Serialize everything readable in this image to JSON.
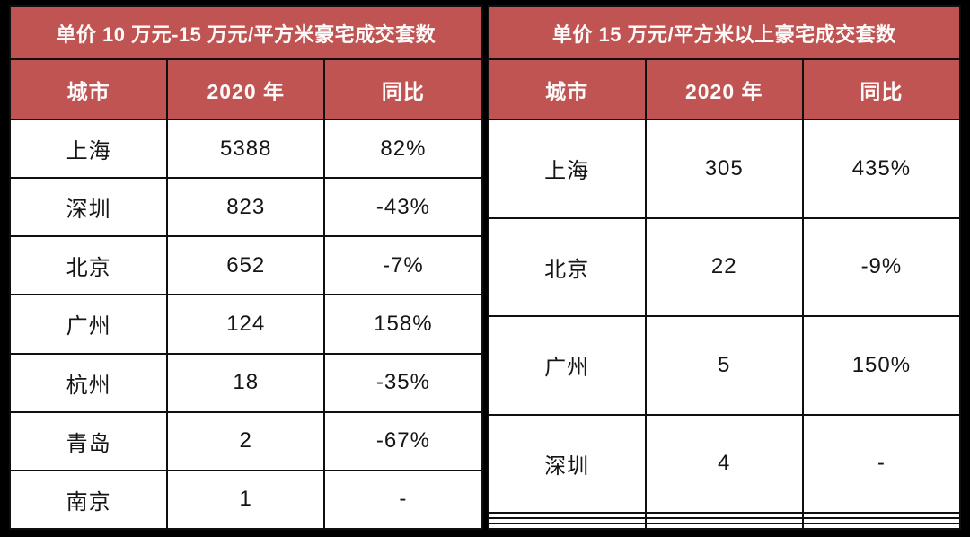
{
  "colors": {
    "header_bg": "#C05452",
    "header_text": "#FDFAF9",
    "body_text": "#151515",
    "grid_line": "#0F0F0F",
    "outer_frame": "#000000",
    "cell_bg": "#FFFFFF"
  },
  "chart_data": [
    {
      "type": "table",
      "title": "单价 10 万元-15 万元/平方米豪宅成交套数",
      "columns": [
        "城市",
        "2020 年",
        "同比"
      ],
      "rows": [
        [
          "上海",
          "5388",
          "82%"
        ],
        [
          "深圳",
          "823",
          "-43%"
        ],
        [
          "北京",
          "652",
          "-7%"
        ],
        [
          "广州",
          "124",
          "158%"
        ],
        [
          "杭州",
          "18",
          "-35%"
        ],
        [
          "青岛",
          "2",
          "-67%"
        ],
        [
          "南京",
          "1",
          "-"
        ]
      ]
    },
    {
      "type": "table",
      "title": "单价 15 万元/平方米以上豪宅成交套数",
      "columns": [
        "城市",
        "2020 年",
        "同比"
      ],
      "rows": [
        [
          "上海",
          "305",
          "435%"
        ],
        [
          "北京",
          "22",
          "-9%"
        ],
        [
          "广州",
          "5",
          "150%"
        ],
        [
          "深圳",
          "4",
          "-"
        ],
        [
          "",
          "",
          ""
        ],
        [
          "",
          "",
          ""
        ],
        [
          "",
          "",
          ""
        ]
      ]
    }
  ]
}
